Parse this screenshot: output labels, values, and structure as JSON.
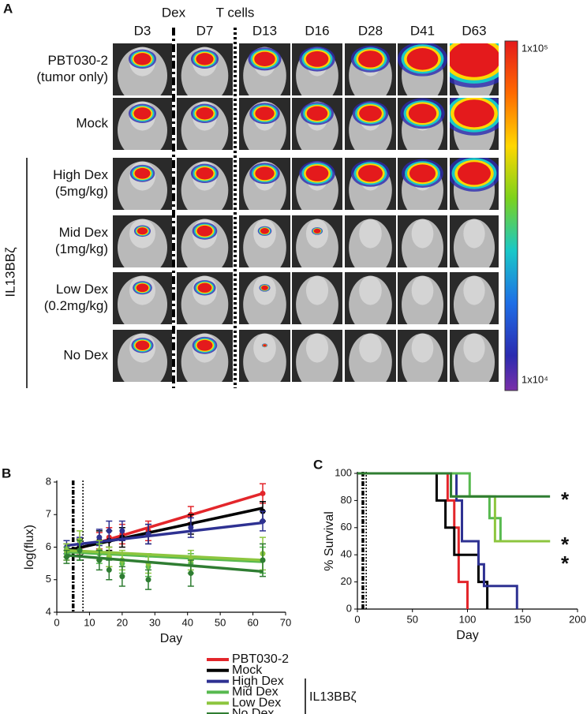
{
  "panel_a": {
    "letter": "A",
    "markers": [
      "Dex",
      "T cells"
    ],
    "days": [
      "D3",
      "D7",
      "D13",
      "D16",
      "D28",
      "D41",
      "D63"
    ],
    "rows": [
      [
        "PBT030-2",
        "(tumor only)"
      ],
      [
        "Mock"
      ],
      [
        "High Dex",
        "(5mg/kg)"
      ],
      [
        "Mid Dex",
        "(1mg/kg)"
      ],
      [
        "Low Dex",
        "(0.2mg/kg)"
      ],
      [
        "No Dex"
      ]
    ],
    "group": "IL13BBζ",
    "colorbar_labels": [
      "1x10⁵",
      "1x10⁴"
    ]
  },
  "chart_data": [
    {
      "type": "line",
      "letter": "B",
      "xlabel": "Day",
      "ylabel": "log(flux)",
      "xlim": [
        0,
        70
      ],
      "xticks": [
        0,
        10,
        20,
        30,
        40,
        50,
        60,
        70
      ],
      "ylim": [
        4,
        8
      ],
      "yticks": [
        4,
        5,
        6,
        7,
        8
      ],
      "events": [
        5,
        8
      ],
      "x": [
        3,
        7,
        13,
        16,
        20,
        28,
        41,
        63
      ],
      "fit_x": [
        3,
        63
      ],
      "legend_group": "IL13BBζ",
      "series": [
        {
          "name": "PBT030-2",
          "color": "#e3262b",
          "values": [
            5.8,
            6.0,
            6.2,
            6.3,
            6.4,
            6.5,
            7.0,
            7.65
          ],
          "errors": [
            0.2,
            0.2,
            0.25,
            0.3,
            0.3,
            0.3,
            0.25,
            0.3
          ],
          "fit": [
            5.85,
            7.65
          ]
        },
        {
          "name": "Mock",
          "color": "#000000",
          "values": [
            5.9,
            6.0,
            6.2,
            6.2,
            6.3,
            6.4,
            6.7,
            7.1
          ],
          "errors": [
            0.2,
            0.25,
            0.3,
            0.3,
            0.3,
            0.3,
            0.3,
            0.3
          ],
          "fit": [
            5.9,
            7.2
          ]
        },
        {
          "name": "High Dex",
          "color": "#2e3192",
          "values": [
            6.0,
            6.1,
            6.3,
            6.5,
            6.5,
            6.4,
            6.6,
            6.8
          ],
          "errors": [
            0.2,
            0.2,
            0.25,
            0.3,
            0.3,
            0.3,
            0.3,
            0.3
          ],
          "fit": [
            6.05,
            6.75
          ]
        },
        {
          "name": "Mid Dex",
          "color": "#57b94f",
          "values": [
            5.8,
            5.9,
            5.8,
            5.7,
            5.5,
            5.4,
            5.5,
            5.6
          ],
          "errors": [
            0.2,
            0.3,
            0.3,
            0.3,
            0.3,
            0.3,
            0.3,
            0.4
          ],
          "fit": [
            5.85,
            5.55
          ]
        },
        {
          "name": "Low Dex",
          "color": "#8dc63f",
          "values": [
            5.9,
            6.2,
            5.9,
            5.7,
            5.6,
            5.5,
            5.6,
            5.8
          ],
          "errors": [
            0.2,
            0.3,
            0.3,
            0.3,
            0.3,
            0.3,
            0.3,
            0.5
          ],
          "fit": [
            5.9,
            5.6
          ]
        },
        {
          "name": "No Dex",
          "color": "#2f7d32",
          "values": [
            5.7,
            5.9,
            5.6,
            5.3,
            5.1,
            5.0,
            5.2,
            5.6
          ],
          "errors": [
            0.2,
            0.3,
            0.3,
            0.3,
            0.3,
            0.3,
            0.4,
            0.5
          ],
          "fit": [
            5.75,
            5.25
          ]
        }
      ]
    },
    {
      "type": "step",
      "letter": "C",
      "xlabel": "Day",
      "ylabel": "% Survival",
      "xlim": [
        0,
        200
      ],
      "xticks": [
        0,
        50,
        100,
        150,
        200
      ],
      "ylim": [
        0,
        100
      ],
      "yticks": [
        0,
        20,
        40,
        60,
        80,
        100
      ],
      "events": [
        5,
        8
      ],
      "annotations": [
        "*",
        "*",
        "*"
      ],
      "series": [
        {
          "color": "#e3262b",
          "x": [
            0,
            82,
            88,
            92,
            100
          ],
          "values": [
            100,
            80,
            60,
            20,
            0
          ]
        },
        {
          "color": "#000000",
          "x": [
            0,
            72,
            80,
            88,
            110,
            118
          ],
          "values": [
            100,
            80,
            60,
            40,
            20,
            0
          ]
        },
        {
          "color": "#2e3192",
          "x": [
            0,
            90,
            95,
            110,
            115,
            145
          ],
          "values": [
            100,
            80,
            50,
            33,
            17,
            0
          ]
        },
        {
          "color": "#57b94f",
          "x": [
            0,
            102,
            120,
            130,
            175
          ],
          "values": [
            100,
            83,
            67,
            50,
            50
          ]
        },
        {
          "color": "#8dc63f",
          "x": [
            0,
            85,
            125,
            175
          ],
          "values": [
            100,
            83,
            50,
            50
          ]
        },
        {
          "color": "#2f7d32",
          "x": [
            0,
            85,
            175
          ],
          "values": [
            100,
            83,
            83
          ]
        }
      ]
    }
  ]
}
